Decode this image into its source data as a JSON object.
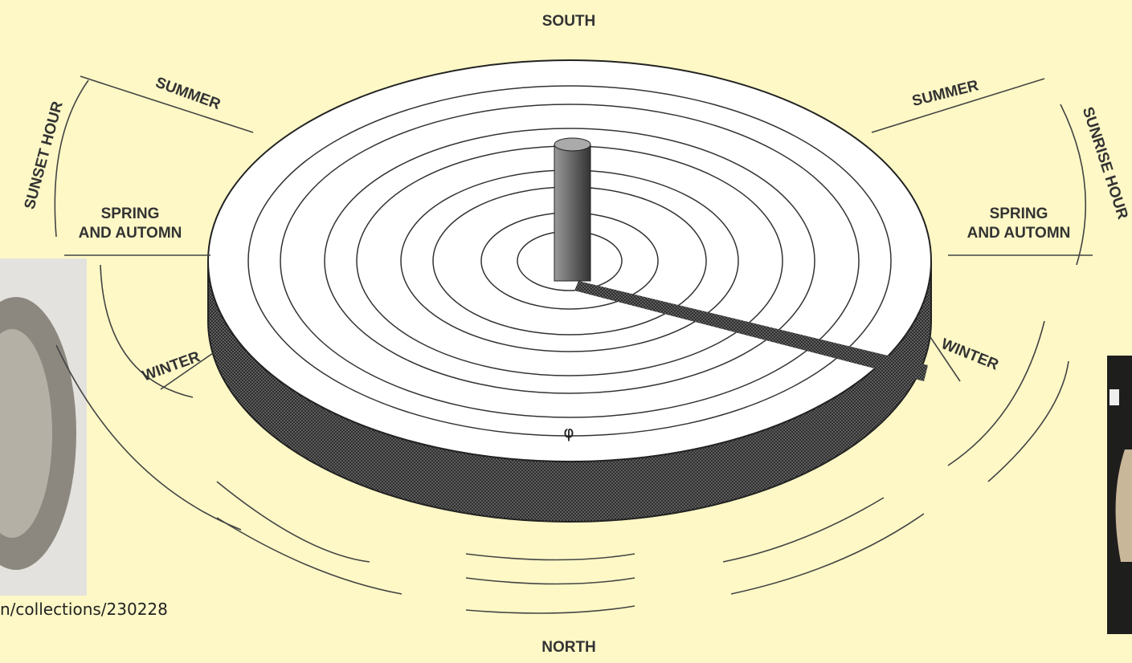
{
  "compass": {
    "top": "SOUTH",
    "bottom": "NORTH"
  },
  "left": {
    "arc_label": "SUNSET HOUR",
    "summer": "SUMMER",
    "equinox": [
      "SPRING",
      "AND AUTOMN"
    ],
    "winter": "WINTER"
  },
  "right": {
    "arc_label": "SUNRISE HOUR",
    "summer": "SUMMER",
    "equinox": [
      "SPRING",
      "AND AUTOMN"
    ],
    "winter": "WINTER"
  },
  "dial_mark": "φ",
  "caption": "n/collections/230228"
}
